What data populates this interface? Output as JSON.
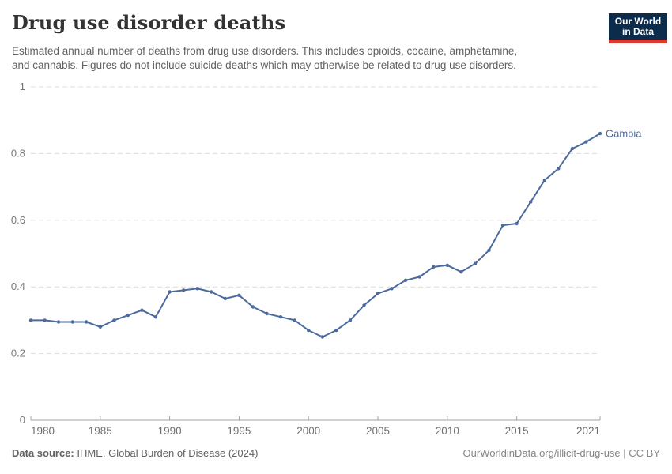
{
  "header": {
    "title": "Drug use disorder deaths",
    "subtitle_line1": "Estimated annual number of deaths from drug use disorders. This includes opioids, cocaine, amphetamine,",
    "subtitle_line2": "and cannabis. Figures do not include suicide deaths which may otherwise be related to drug use disorders.",
    "logo_line1": "Our World",
    "logo_line2": "in Data"
  },
  "footer": {
    "source_label": "Data source:",
    "source_value": "IHME, Global Burden of Disease (2024)",
    "link_text": "OurWorldinData.org/illicit-drug-use | CC BY"
  },
  "colors": {
    "line_blue": "#4C6A9C",
    "logo_navy": "#0C2C4C",
    "logo_red": "#D93B31",
    "gridline": "#dcdcdc",
    "axis_text": "#6f6f6f"
  },
  "chart_data": {
    "type": "line",
    "title": "Drug use disorder deaths",
    "xlabel": "",
    "ylabel": "",
    "ylim": [
      0,
      1
    ],
    "grid": "horizontal-dashed",
    "legend_position": "end-of-line-label",
    "line_color": "#4C6A9C",
    "y_ticks": [
      0,
      0.2,
      0.4,
      0.6,
      0.8,
      1
    ],
    "y_tick_labels": [
      "0",
      "0.2",
      "0.4",
      "0.6",
      "0.8",
      "1"
    ],
    "x_ticks": [
      1980,
      1985,
      1990,
      1995,
      2000,
      2005,
      2010,
      2015,
      2021
    ],
    "x": [
      1980,
      1981,
      1982,
      1983,
      1984,
      1985,
      1986,
      1987,
      1988,
      1989,
      1990,
      1991,
      1992,
      1993,
      1994,
      1995,
      1996,
      1997,
      1998,
      1999,
      2000,
      2001,
      2002,
      2003,
      2004,
      2005,
      2006,
      2007,
      2008,
      2009,
      2010,
      2011,
      2012,
      2013,
      2014,
      2015,
      2016,
      2017,
      2018,
      2019,
      2020,
      2021
    ],
    "series": [
      {
        "name": "Gambia",
        "values": [
          0.3,
          0.3,
          0.295,
          0.295,
          0.295,
          0.28,
          0.3,
          0.315,
          0.33,
          0.31,
          0.385,
          0.39,
          0.395,
          0.385,
          0.365,
          0.375,
          0.34,
          0.32,
          0.31,
          0.3,
          0.27,
          0.25,
          0.27,
          0.3,
          0.345,
          0.38,
          0.395,
          0.42,
          0.43,
          0.46,
          0.465,
          0.445,
          0.47,
          0.51,
          0.585,
          0.59,
          0.655,
          0.72,
          0.755,
          0.815,
          0.835,
          0.86
        ]
      }
    ]
  }
}
